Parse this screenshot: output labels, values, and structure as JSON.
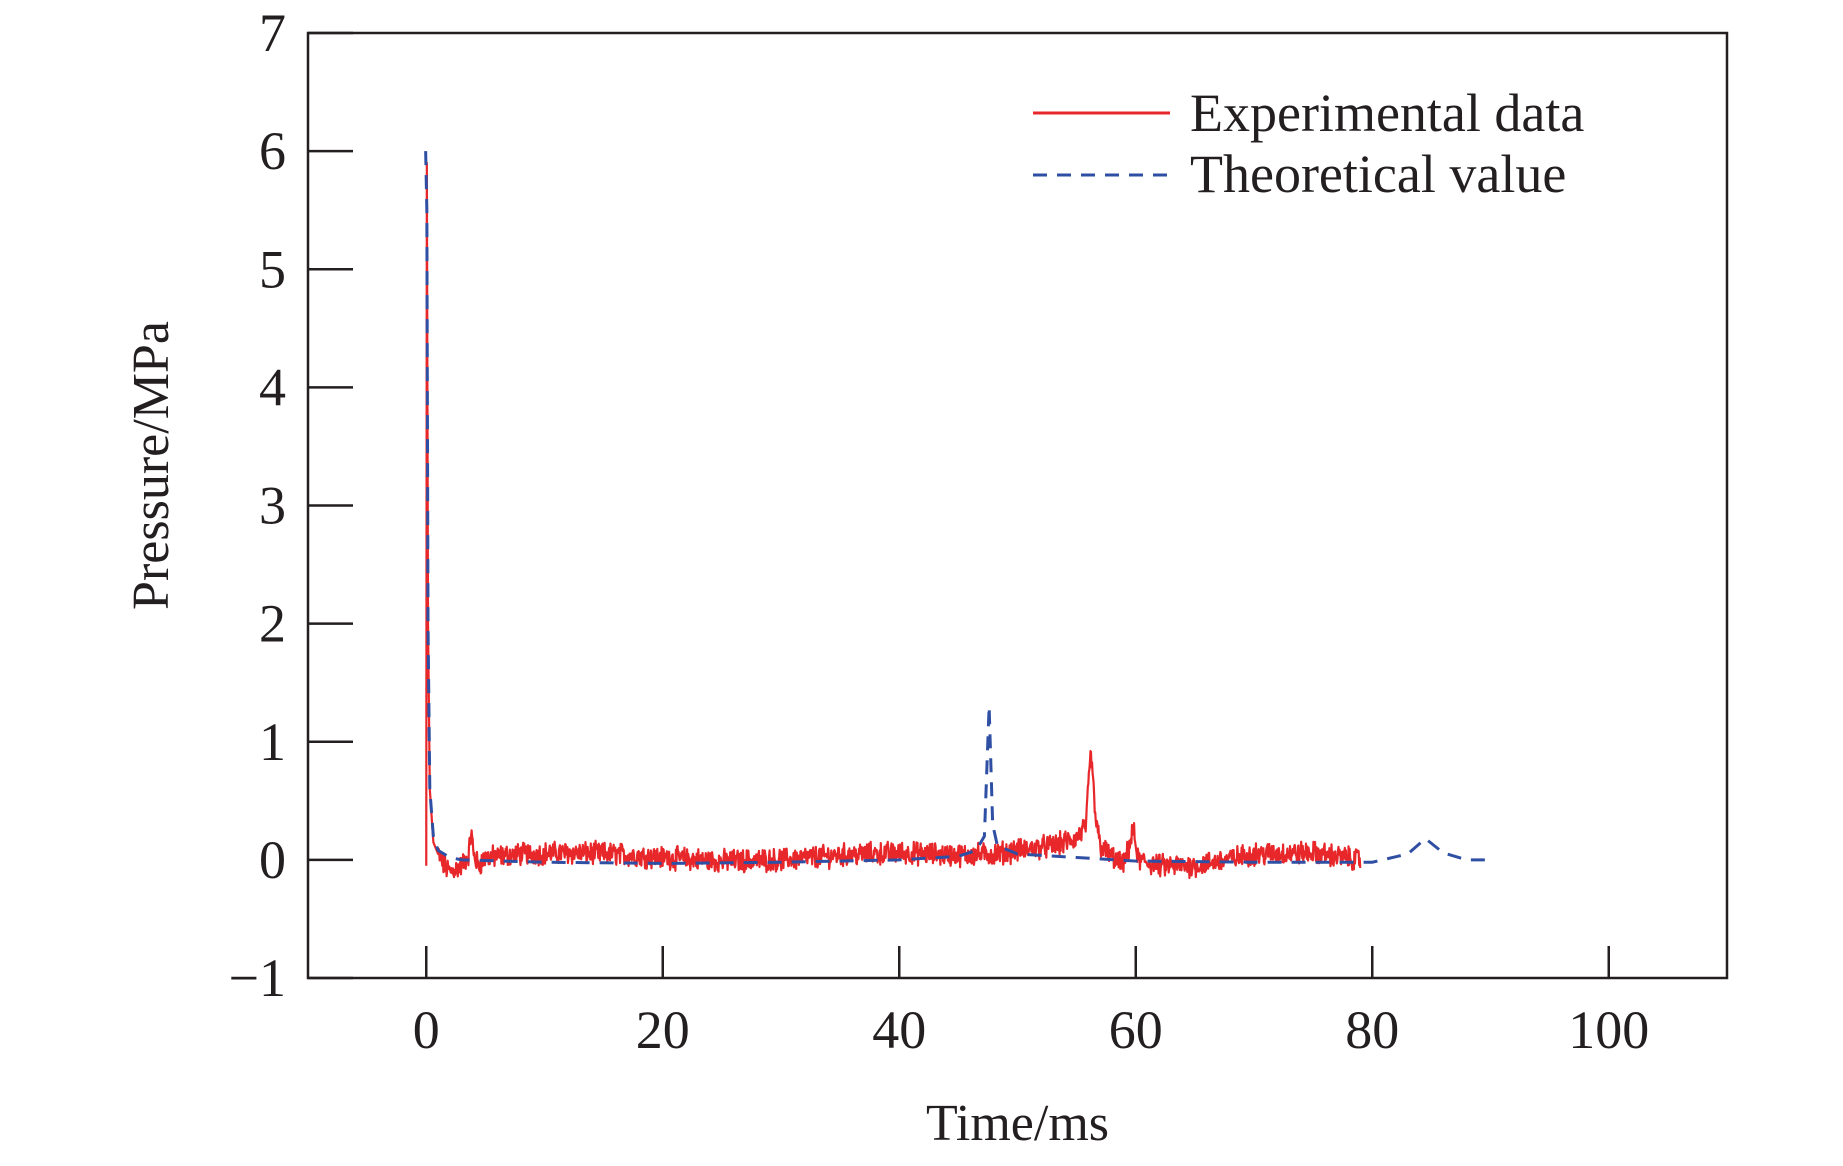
{
  "chart_data": {
    "type": "line",
    "xlabel": "Time/ms",
    "ylabel": "Pressure/MPa",
    "xlim": [
      -10,
      110
    ],
    "ylim": [
      -1,
      7
    ],
    "x_ticks": [
      0,
      20,
      40,
      60,
      80,
      100
    ],
    "y_ticks": [
      -1,
      0,
      1,
      2,
      3,
      4,
      5,
      6,
      7
    ],
    "x_tick_labels": [
      "0",
      "20",
      "40",
      "60",
      "80",
      "100"
    ],
    "y_tick_labels": [
      "−1",
      "0",
      "1",
      "2",
      "3",
      "4",
      "5",
      "6",
      "7"
    ],
    "legend_position": "top-right",
    "series": [
      {
        "name": "Experimental data",
        "color": "#e8272a",
        "style": "solid",
        "noise_amplitude": 0.08,
        "points": [
          [
            0.0,
            -0.05
          ],
          [
            0.05,
            5.9
          ],
          [
            0.15,
            2.0
          ],
          [
            0.3,
            0.6
          ],
          [
            0.6,
            0.15
          ],
          [
            1.0,
            0.05
          ],
          [
            1.5,
            -0.05
          ],
          [
            2.0,
            -0.1
          ],
          [
            3.0,
            -0.05
          ],
          [
            3.6,
            0.05
          ],
          [
            3.8,
            0.25
          ],
          [
            4.0,
            0.05
          ],
          [
            4.4,
            -0.05
          ],
          [
            5.0,
            0.02
          ],
          [
            8.0,
            0.05
          ],
          [
            12.0,
            0.06
          ],
          [
            16.0,
            0.05
          ],
          [
            20.0,
            0.02
          ],
          [
            25.0,
            -0.01
          ],
          [
            30.0,
            0.0
          ],
          [
            35.0,
            0.04
          ],
          [
            40.0,
            0.06
          ],
          [
            45.0,
            0.04
          ],
          [
            48.0,
            0.05
          ],
          [
            50.0,
            0.08
          ],
          [
            53.0,
            0.12
          ],
          [
            55.0,
            0.18
          ],
          [
            55.8,
            0.3
          ],
          [
            56.2,
            0.92
          ],
          [
            56.6,
            0.35
          ],
          [
            57.0,
            0.12
          ],
          [
            58.0,
            0.02
          ],
          [
            59.0,
            -0.05
          ],
          [
            59.8,
            0.25
          ],
          [
            60.2,
            0.0
          ],
          [
            62.0,
            -0.05
          ],
          [
            65.0,
            -0.05
          ],
          [
            70.0,
            0.05
          ],
          [
            75.0,
            0.06
          ],
          [
            79.0,
            0.0
          ]
        ]
      },
      {
        "name": "Theoretical value",
        "color": "#2e4fa3",
        "style": "dashed",
        "points": [
          [
            -0.05,
            6.0
          ],
          [
            0.05,
            5.5
          ],
          [
            0.15,
            2.0
          ],
          [
            0.3,
            0.6
          ],
          [
            0.6,
            0.2
          ],
          [
            1.0,
            0.08
          ],
          [
            2.0,
            0.02
          ],
          [
            3.0,
            0.0
          ],
          [
            10.0,
            -0.02
          ],
          [
            20.0,
            -0.03
          ],
          [
            30.0,
            -0.02
          ],
          [
            40.0,
            0.0
          ],
          [
            45.0,
            0.03
          ],
          [
            46.5,
            0.08
          ],
          [
            47.2,
            0.2
          ],
          [
            47.6,
            1.3
          ],
          [
            47.9,
            0.3
          ],
          [
            48.3,
            0.12
          ],
          [
            50.0,
            0.05
          ],
          [
            55.0,
            0.02
          ],
          [
            60.0,
            -0.01
          ],
          [
            70.0,
            -0.02
          ],
          [
            80.0,
            -0.02
          ],
          [
            83.0,
            0.05
          ],
          [
            84.5,
            0.18
          ],
          [
            86.0,
            0.06
          ],
          [
            88.0,
            0.0
          ],
          [
            90.0,
            0.0
          ]
        ]
      }
    ]
  }
}
